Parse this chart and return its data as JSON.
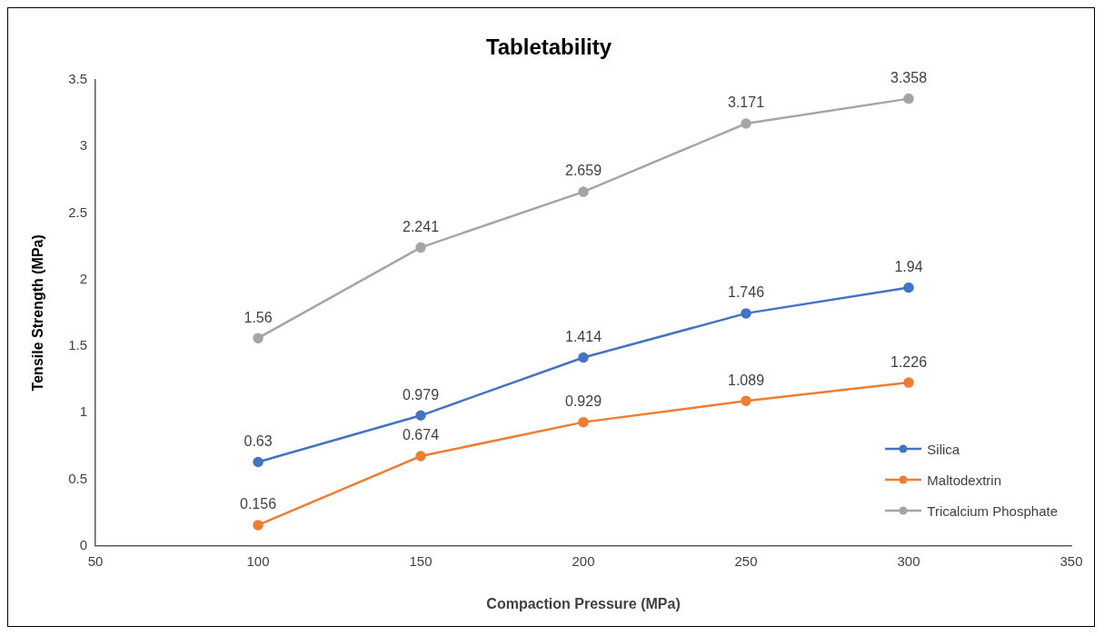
{
  "chart_data": {
    "type": "line",
    "title": "Tabletability",
    "xlabel": "Compaction Pressure (MPa)",
    "ylabel": "Tensile Strength (MPa)",
    "x": [
      100,
      150,
      200,
      250,
      300
    ],
    "series": [
      {
        "name": "Silica",
        "color": "#4472c4",
        "values": [
          0.63,
          0.979,
          1.414,
          1.746,
          1.94
        ]
      },
      {
        "name": "Maltodextrin",
        "color": "#ed7d31",
        "values": [
          0.156,
          0.674,
          0.929,
          1.089,
          1.226
        ]
      },
      {
        "name": "Tricalcium Phosphate",
        "color": "#a5a5a5",
        "values": [
          1.56,
          2.241,
          2.659,
          3.171,
          3.358
        ]
      }
    ],
    "xlim": [
      50,
      350
    ],
    "xticks": [
      50,
      100,
      150,
      200,
      250,
      300,
      350
    ],
    "ylim": [
      0,
      3.5
    ],
    "yticks": [
      0,
      0.5,
      1,
      1.5,
      2,
      2.5,
      3,
      3.5
    ],
    "grid": false,
    "legend": "bottom right",
    "marker": "circle",
    "line_style": "solid",
    "data_labels": true
  }
}
